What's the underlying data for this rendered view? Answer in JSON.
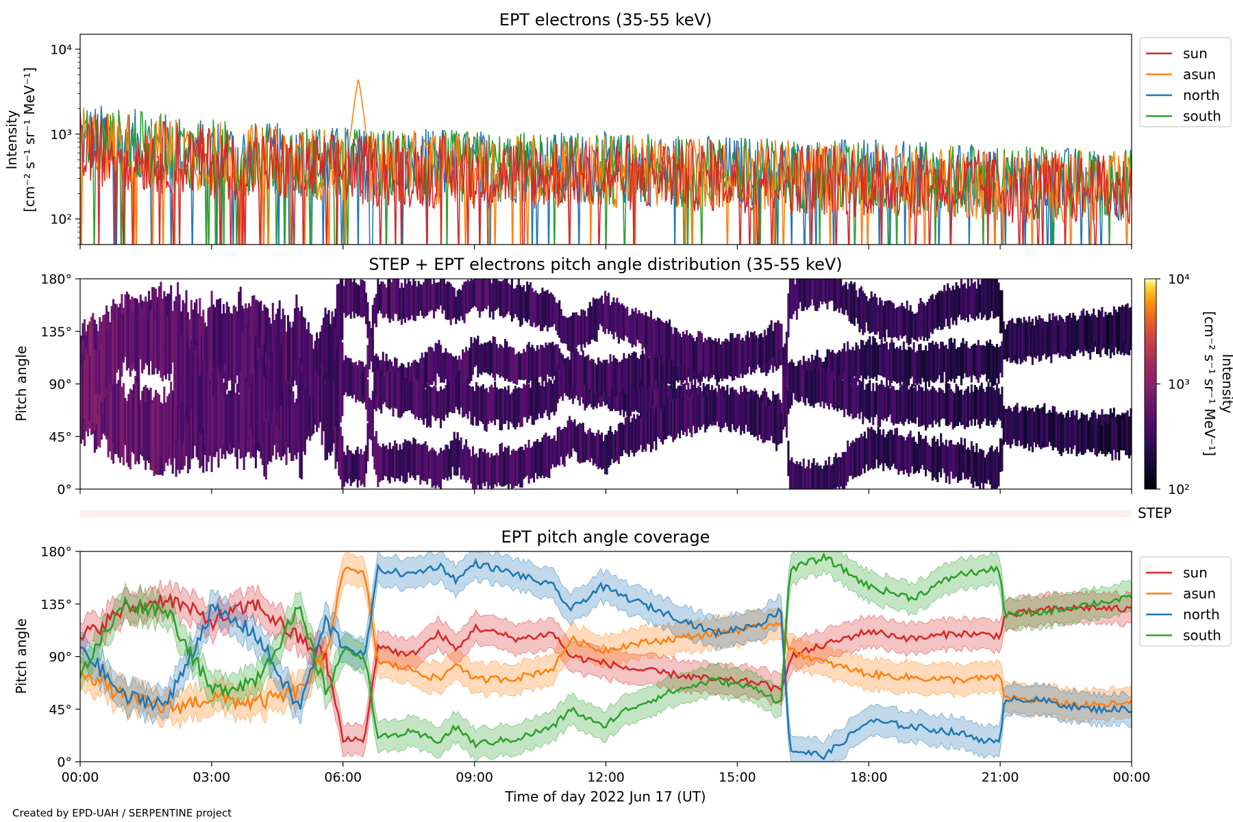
{
  "chart_data": [
    {
      "type": "line",
      "title": "EPT electrons (35-55 keV)",
      "ylabel_line1": "Intensity",
      "ylabel_line2": "[cm⁻² s⁻¹ sr⁻¹ MeV⁻¹]",
      "yscale": "log",
      "ylim": [
        50,
        15000
      ],
      "yticks": [
        {
          "value": 100,
          "label": "10²"
        },
        {
          "value": 1000,
          "label": "10³"
        },
        {
          "value": 10000,
          "label": "10⁴"
        }
      ],
      "xlim_hours": [
        0,
        24
      ],
      "legend": {
        "placement": "outside-right-top"
      },
      "series": [
        {
          "name": "sun",
          "color": "#d62728",
          "level_points": [
            [
              0,
              700
            ],
            [
              1.5,
              550
            ],
            [
              4,
              420
            ],
            [
              6,
              380
            ],
            [
              8,
              360
            ],
            [
              12,
              330
            ],
            [
              15,
              320
            ],
            [
              18,
              280
            ],
            [
              21,
              240
            ],
            [
              24,
              210
            ]
          ]
        },
        {
          "name": "asun",
          "color": "#ff7f0e",
          "level_points": [
            [
              0,
              800
            ],
            [
              1.5,
              650
            ],
            [
              4,
              480
            ],
            [
              6,
              430
            ],
            [
              8,
              400
            ],
            [
              12,
              360
            ],
            [
              15,
              340
            ],
            [
              18,
              300
            ],
            [
              21,
              260
            ],
            [
              24,
              230
            ]
          ],
          "peak": {
            "x": 6.35,
            "y": 4500
          }
        },
        {
          "name": "north",
          "color": "#1f77b4",
          "level_points": [
            [
              0,
              900
            ],
            [
              1.5,
              700
            ],
            [
              4,
              520
            ],
            [
              6,
              460
            ],
            [
              8,
              430
            ],
            [
              12,
              390
            ],
            [
              15,
              360
            ],
            [
              18,
              320
            ],
            [
              21,
              280
            ],
            [
              24,
              250
            ]
          ]
        },
        {
          "name": "south",
          "color": "#2ca02c",
          "level_points": [
            [
              0,
              850
            ],
            [
              1.5,
              680
            ],
            [
              4,
              500
            ],
            [
              6,
              450
            ],
            [
              8,
              420
            ],
            [
              12,
              380
            ],
            [
              15,
              350
            ],
            [
              18,
              310
            ],
            [
              21,
              270
            ],
            [
              24,
              240
            ]
          ]
        }
      ]
    },
    {
      "type": "heatmap",
      "title": "STEP + EPT electrons pitch angle distribution (35-55 keV)",
      "ylabel": "Pitch angle",
      "ylim": [
        0,
        180
      ],
      "yticks": [
        "0°",
        "45°",
        "90°",
        "135°",
        "180°"
      ],
      "colorbar": {
        "label_line1": "Intensity",
        "label_line2": "[cm⁻² s⁻¹ sr⁻¹ MeV⁻¹]",
        "scale": "log",
        "range": [
          100,
          10000
        ],
        "ticks": [
          "10²",
          "10³",
          "10⁴"
        ],
        "colormap": "inferno"
      }
    },
    {
      "type": "band",
      "label": "STEP",
      "color": "#fdefe8"
    },
    {
      "type": "line",
      "title": "EPT pitch angle coverage",
      "ylabel": "Pitch angle",
      "xlabel": "Time of day 2022 Jun 17 (UT)",
      "ylim": [
        0,
        180
      ],
      "yticks": [
        "0°",
        "45°",
        "90°",
        "135°",
        "180°"
      ],
      "xlim_hours": [
        0,
        24
      ],
      "xticks": [
        "00:00",
        "03:00",
        "06:00",
        "09:00",
        "12:00",
        "15:00",
        "18:00",
        "21:00",
        "00:00"
      ],
      "legend": {
        "placement": "outside-right-top"
      },
      "series": [
        {
          "name": "sun",
          "color": "#d62728",
          "points": [
            [
              0,
              105
            ],
            [
              1,
              130
            ],
            [
              2,
              140
            ],
            [
              3,
              120
            ],
            [
              4,
              135
            ],
            [
              5,
              105
            ],
            [
              5.6,
              90
            ],
            [
              6,
              18
            ],
            [
              6.5,
              20
            ],
            [
              6.8,
              100
            ],
            [
              7.5,
              90
            ],
            [
              8.2,
              110
            ],
            [
              8.6,
              95
            ],
            [
              9,
              115
            ],
            [
              10,
              105
            ],
            [
              10.8,
              110
            ],
            [
              11.2,
              90
            ],
            [
              11.9,
              85
            ],
            [
              12.5,
              80
            ],
            [
              13.5,
              75
            ],
            [
              14.5,
              70
            ],
            [
              15.5,
              68
            ],
            [
              16,
              60
            ],
            [
              16.2,
              90
            ],
            [
              17,
              100
            ],
            [
              18,
              112
            ],
            [
              19,
              105
            ],
            [
              20,
              110
            ],
            [
              21,
              108
            ],
            [
              21.1,
              125
            ],
            [
              22,
              130
            ],
            [
              23,
              132
            ],
            [
              24,
              130
            ]
          ]
        },
        {
          "name": "asun",
          "color": "#ff7f0e",
          "points": [
            [
              0,
              80
            ],
            [
              1,
              55
            ],
            [
              2,
              45
            ],
            [
              3,
              55
            ],
            [
              4,
              50
            ],
            [
              5,
              60
            ],
            [
              5.6,
              90
            ],
            [
              6,
              165
            ],
            [
              6.5,
              160
            ],
            [
              6.8,
              85
            ],
            [
              7.5,
              80
            ],
            [
              8.2,
              70
            ],
            [
              8.6,
              85
            ],
            [
              9,
              70
            ],
            [
              10,
              72
            ],
            [
              10.8,
              80
            ],
            [
              11.2,
              105
            ],
            [
              11.9,
              95
            ],
            [
              12.5,
              100
            ],
            [
              13.5,
              105
            ],
            [
              14.5,
              110
            ],
            [
              15.5,
              115
            ],
            [
              16,
              120
            ],
            [
              16.2,
              95
            ],
            [
              17,
              85
            ],
            [
              18,
              75
            ],
            [
              19,
              72
            ],
            [
              20,
              70
            ],
            [
              21,
              72
            ],
            [
              21.1,
              55
            ],
            [
              22,
              52
            ],
            [
              23,
              48
            ],
            [
              24,
              50
            ]
          ]
        },
        {
          "name": "north",
          "color": "#1f77b4",
          "points": [
            [
              0,
              100
            ],
            [
              1,
              55
            ],
            [
              2,
              50
            ],
            [
              3,
              130
            ],
            [
              4,
              110
            ],
            [
              5,
              45
            ],
            [
              5.6,
              120
            ],
            [
              6,
              100
            ],
            [
              6.5,
              90
            ],
            [
              6.8,
              165
            ],
            [
              7.5,
              160
            ],
            [
              8.2,
              168
            ],
            [
              8.6,
              155
            ],
            [
              9,
              170
            ],
            [
              10,
              160
            ],
            [
              10.8,
              150
            ],
            [
              11.2,
              130
            ],
            [
              11.9,
              150
            ],
            [
              12.5,
              140
            ],
            [
              13.5,
              125
            ],
            [
              14.5,
              110
            ],
            [
              15.5,
              118
            ],
            [
              16,
              130
            ],
            [
              16.2,
              10
            ],
            [
              17,
              5
            ],
            [
              18,
              35
            ],
            [
              19,
              30
            ],
            [
              20,
              25
            ],
            [
              21,
              15
            ],
            [
              21.1,
              55
            ],
            [
              22,
              52
            ],
            [
              23,
              45
            ],
            [
              24,
              45
            ]
          ]
        },
        {
          "name": "south",
          "color": "#2ca02c",
          "points": [
            [
              0,
              75
            ],
            [
              1,
              135
            ],
            [
              2,
              130
            ],
            [
              3,
              60
            ],
            [
              4,
              70
            ],
            [
              5,
              130
            ],
            [
              5.6,
              60
            ],
            [
              6,
              95
            ],
            [
              6.5,
              90
            ],
            [
              6.8,
              20
            ],
            [
              7.5,
              25
            ],
            [
              8.2,
              18
            ],
            [
              8.6,
              30
            ],
            [
              9,
              15
            ],
            [
              10,
              20
            ],
            [
              10.8,
              30
            ],
            [
              11.2,
              45
            ],
            [
              11.9,
              30
            ],
            [
              12.5,
              45
            ],
            [
              13.5,
              60
            ],
            [
              14.5,
              70
            ],
            [
              15.5,
              62
            ],
            [
              16,
              50
            ],
            [
              16.2,
              165
            ],
            [
              17,
              175
            ],
            [
              18,
              150
            ],
            [
              19,
              140
            ],
            [
              20,
              160
            ],
            [
              21,
              165
            ],
            [
              21.1,
              125
            ],
            [
              22,
              128
            ],
            [
              23,
              135
            ],
            [
              24,
              140
            ]
          ]
        }
      ]
    }
  ],
  "credit": "Created by EPD-UAH / SERPENTINE project"
}
